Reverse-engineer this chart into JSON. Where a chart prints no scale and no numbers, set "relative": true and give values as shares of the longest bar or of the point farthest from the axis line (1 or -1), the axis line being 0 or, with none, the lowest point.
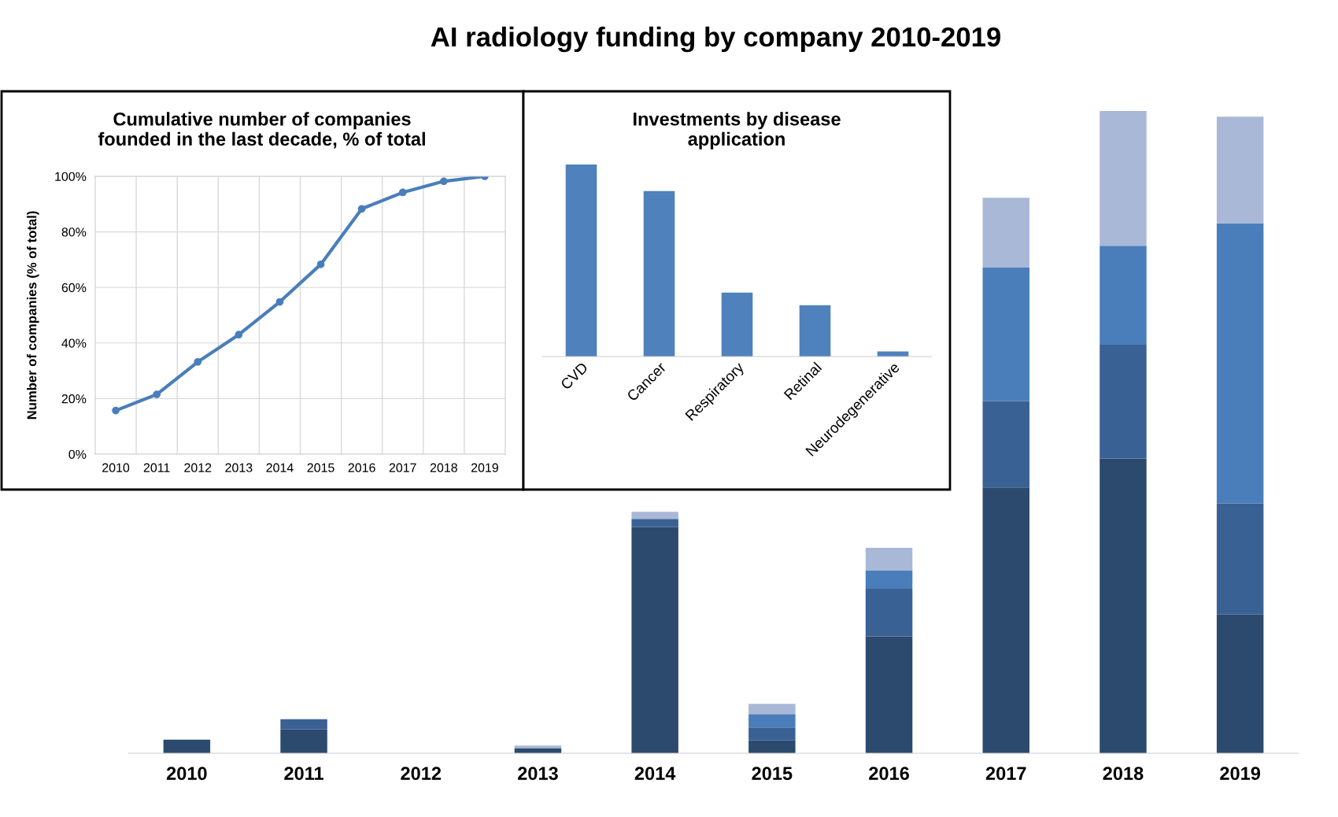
{
  "chart_data": [
    {
      "type": "bar",
      "title": "AI radiology funding by company 2010-2019",
      "relative": true,
      "stacked": true,
      "categories": [
        "2010",
        "2011",
        "2012",
        "2013",
        "2014",
        "2015",
        "2016",
        "2017",
        "2018",
        "2019"
      ],
      "series": [
        {
          "color": "#2c4a6e",
          "values": [
            0.021,
            0.037,
            0,
            0.008,
            0.352,
            0.02,
            0.182,
            0.414,
            0.459,
            0.216
          ]
        },
        {
          "color": "#3a6194",
          "values": [
            0,
            0.016,
            0,
            0,
            0.013,
            0.02,
            0.074,
            0.134,
            0.177,
            0.173
          ]
        },
        {
          "color": "#4a7ebb",
          "values": [
            0,
            0,
            0,
            0,
            0,
            0.021,
            0.029,
            0.208,
            0.154,
            0.436
          ]
        },
        {
          "color": "#a9b8d6",
          "values": [
            0,
            0,
            0,
            0.004,
            0.011,
            0.016,
            0.035,
            0.109,
            0.21,
            0.166
          ]
        }
      ],
      "grid": false
    },
    {
      "type": "line",
      "title": "Cumulative number of companies\nfounded in the last decade, % of total",
      "ylabel": "Number of companies (% of total)",
      "categories": [
        "2010",
        "2011",
        "2012",
        "2013",
        "2014",
        "2015",
        "2016",
        "2017",
        "2018",
        "2019"
      ],
      "series": [
        {
          "color": "#4a7ebb",
          "values": [
            15.7,
            21.5,
            33.2,
            43,
            54.8,
            68.3,
            88.3,
            94.2,
            98.2,
            100
          ]
        }
      ],
      "ylim": [
        0,
        100
      ],
      "yticks": [
        {
          "value": 0,
          "label": "0%"
        },
        {
          "value": 20,
          "label": "20%"
        },
        {
          "value": 40,
          "label": "40%"
        },
        {
          "value": 60,
          "label": "60%"
        },
        {
          "value": 80,
          "label": "80%"
        },
        {
          "value": 100,
          "label": "100%"
        }
      ],
      "grid": true,
      "marker": "circle"
    },
    {
      "type": "bar",
      "title": "Investments by disease\napplication",
      "relative": true,
      "categories": [
        "CVD",
        "Cancer",
        "Respiratory",
        "Retinal",
        "Neurodegenerative"
      ],
      "values": [
        1,
        0.862,
        0.333,
        0.267,
        0.027
      ],
      "color": "#4f81bd",
      "grid": false
    }
  ]
}
